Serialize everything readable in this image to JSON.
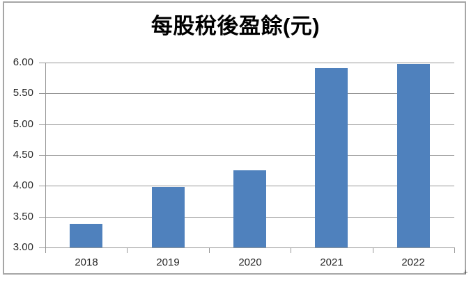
{
  "chart_data": {
    "type": "bar",
    "title": "每股稅後盈餘(元)",
    "categories": [
      "2018",
      "2019",
      "2020",
      "2021",
      "2022"
    ],
    "values": [
      3.38,
      3.98,
      4.25,
      5.91,
      5.98
    ],
    "series_name": "",
    "y_ticks": [
      {
        "label": "6.00",
        "value": 6.0
      },
      {
        "label": "5.50",
        "value": 5.5
      },
      {
        "label": "5.00",
        "value": 5.0
      },
      {
        "label": "4.50",
        "value": 4.5
      },
      {
        "label": "4.00",
        "value": 4.0
      },
      {
        "label": "3.50",
        "value": 3.5
      },
      {
        "label": "3.00",
        "value": 3.0
      }
    ],
    "ylim": [
      3.0,
      6.0
    ],
    "xlabel": "",
    "ylabel": "",
    "grid": true,
    "legend": false,
    "colors": {
      "bar": "#4F81BD",
      "gridline": "#969696",
      "axis": "#969696",
      "frame_border": "#A6A6A6",
      "title_text": "#000000",
      "tick_text": "#262626",
      "background": "#FFFFFF"
    }
  },
  "artifact": {
    "corner_mark": "+"
  }
}
